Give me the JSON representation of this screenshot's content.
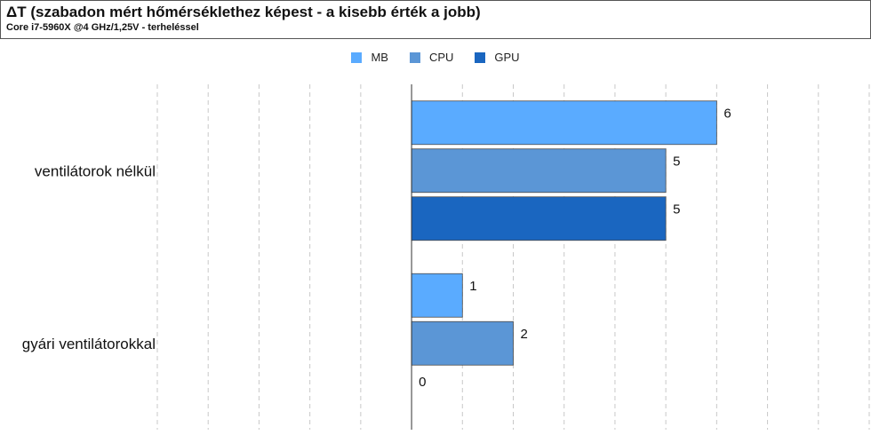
{
  "title": "ΔT (szabadon mért hőmérséklethez képest - a kisebb érték a jobb)",
  "subtitle": "Core i7-5960X @4 GHz/1,25V - terheléssel",
  "chart_data": {
    "type": "bar",
    "orientation": "horizontal",
    "categories": [
      "ventilátorok nélkül",
      "gyári ventilátorokkal"
    ],
    "series": [
      {
        "name": "MB",
        "color": "#5aabff",
        "values": [
          6,
          1
        ]
      },
      {
        "name": "CPU",
        "color": "#5b96d6",
        "values": [
          5,
          2
        ]
      },
      {
        "name": "GPU",
        "color": "#1a66c0",
        "values": [
          5,
          0
        ]
      }
    ],
    "xlim": [
      -5,
      9
    ],
    "grid": true,
    "legend": "top-center",
    "data_labels": true
  }
}
